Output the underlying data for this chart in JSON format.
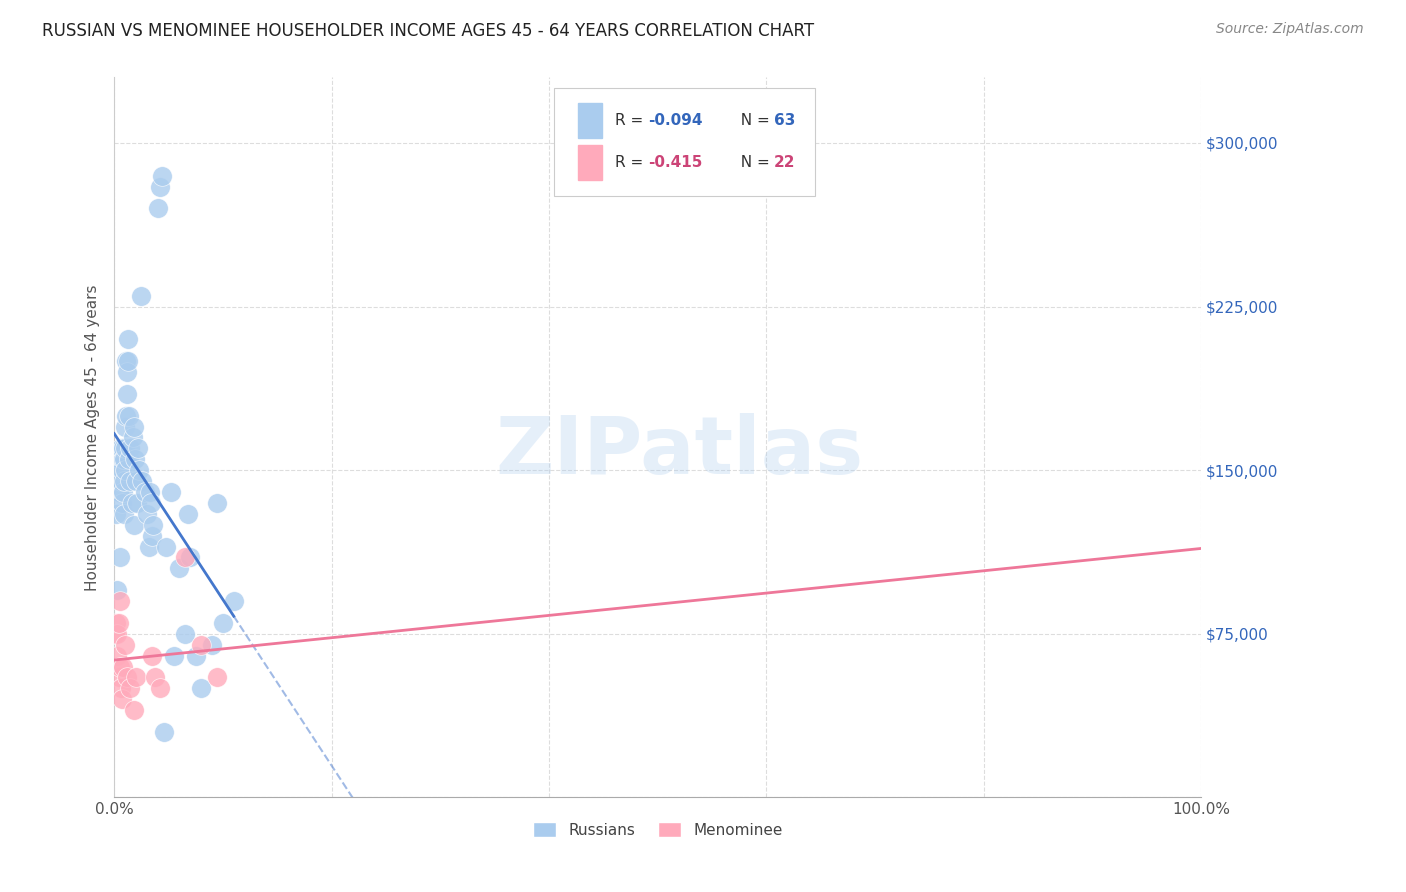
{
  "title": "RUSSIAN VS MENOMINEE HOUSEHOLDER INCOME AGES 45 - 64 YEARS CORRELATION CHART",
  "source": "Source: ZipAtlas.com",
  "ylabel": "Householder Income Ages 45 - 64 years",
  "watermark": "ZIPatlas",
  "yticks": [
    0,
    75000,
    150000,
    225000,
    300000
  ],
  "ytick_labels": [
    "",
    "$75,000",
    "$150,000",
    "$225,000",
    "$300,000"
  ],
  "xlim": [
    0,
    100
  ],
  "ylim": [
    0,
    330000
  ],
  "russian_x": [
    0.2,
    0.3,
    0.4,
    0.5,
    0.5,
    0.6,
    0.6,
    0.7,
    0.7,
    0.8,
    0.8,
    0.8,
    0.9,
    0.9,
    0.9,
    1.0,
    1.0,
    1.0,
    1.1,
    1.1,
    1.2,
    1.2,
    1.3,
    1.3,
    1.4,
    1.4,
    1.5,
    1.5,
    1.6,
    1.7,
    1.8,
    1.8,
    1.9,
    2.0,
    2.1,
    2.2,
    2.3,
    2.5,
    2.6,
    2.8,
    3.0,
    3.2,
    3.3,
    3.4,
    3.5,
    3.6,
    4.0,
    4.2,
    4.4,
    4.6,
    4.8,
    5.2,
    5.5,
    6.0,
    6.5,
    6.8,
    7.0,
    7.5,
    8.0,
    9.0,
    9.5,
    10.0,
    11.0
  ],
  "russian_y": [
    130000,
    95000,
    140000,
    155000,
    110000,
    145000,
    160000,
    150000,
    135000,
    155000,
    160000,
    140000,
    155000,
    145000,
    130000,
    160000,
    170000,
    150000,
    200000,
    175000,
    195000,
    185000,
    200000,
    210000,
    175000,
    155000,
    160000,
    145000,
    135000,
    165000,
    170000,
    125000,
    155000,
    145000,
    135000,
    160000,
    150000,
    230000,
    145000,
    140000,
    130000,
    115000,
    140000,
    135000,
    120000,
    125000,
    270000,
    280000,
    285000,
    30000,
    115000,
    140000,
    65000,
    105000,
    75000,
    130000,
    110000,
    65000,
    50000,
    70000,
    135000,
    80000,
    90000
  ],
  "menominee_x": [
    0.1,
    0.2,
    0.3,
    0.3,
    0.4,
    0.4,
    0.5,
    0.5,
    0.6,
    0.7,
    0.8,
    1.0,
    1.2,
    1.5,
    1.8,
    2.0,
    3.5,
    3.8,
    4.2,
    6.5,
    8.0,
    9.5
  ],
  "menominee_y": [
    75000,
    80000,
    75000,
    65000,
    80000,
    55000,
    90000,
    60000,
    50000,
    45000,
    60000,
    70000,
    55000,
    50000,
    40000,
    55000,
    65000,
    55000,
    50000,
    110000,
    70000,
    55000
  ],
  "bg_color": "#ffffff",
  "grid_color": "#dddddd",
  "russian_line_color": "#4477cc",
  "menominee_line_color": "#ee7799",
  "russian_scatter_color": "#aaccee",
  "menominee_scatter_color": "#ffaabb",
  "xtick_labels": [
    "0.0%",
    "100.0%"
  ],
  "xtick_positions": [
    0,
    100
  ]
}
